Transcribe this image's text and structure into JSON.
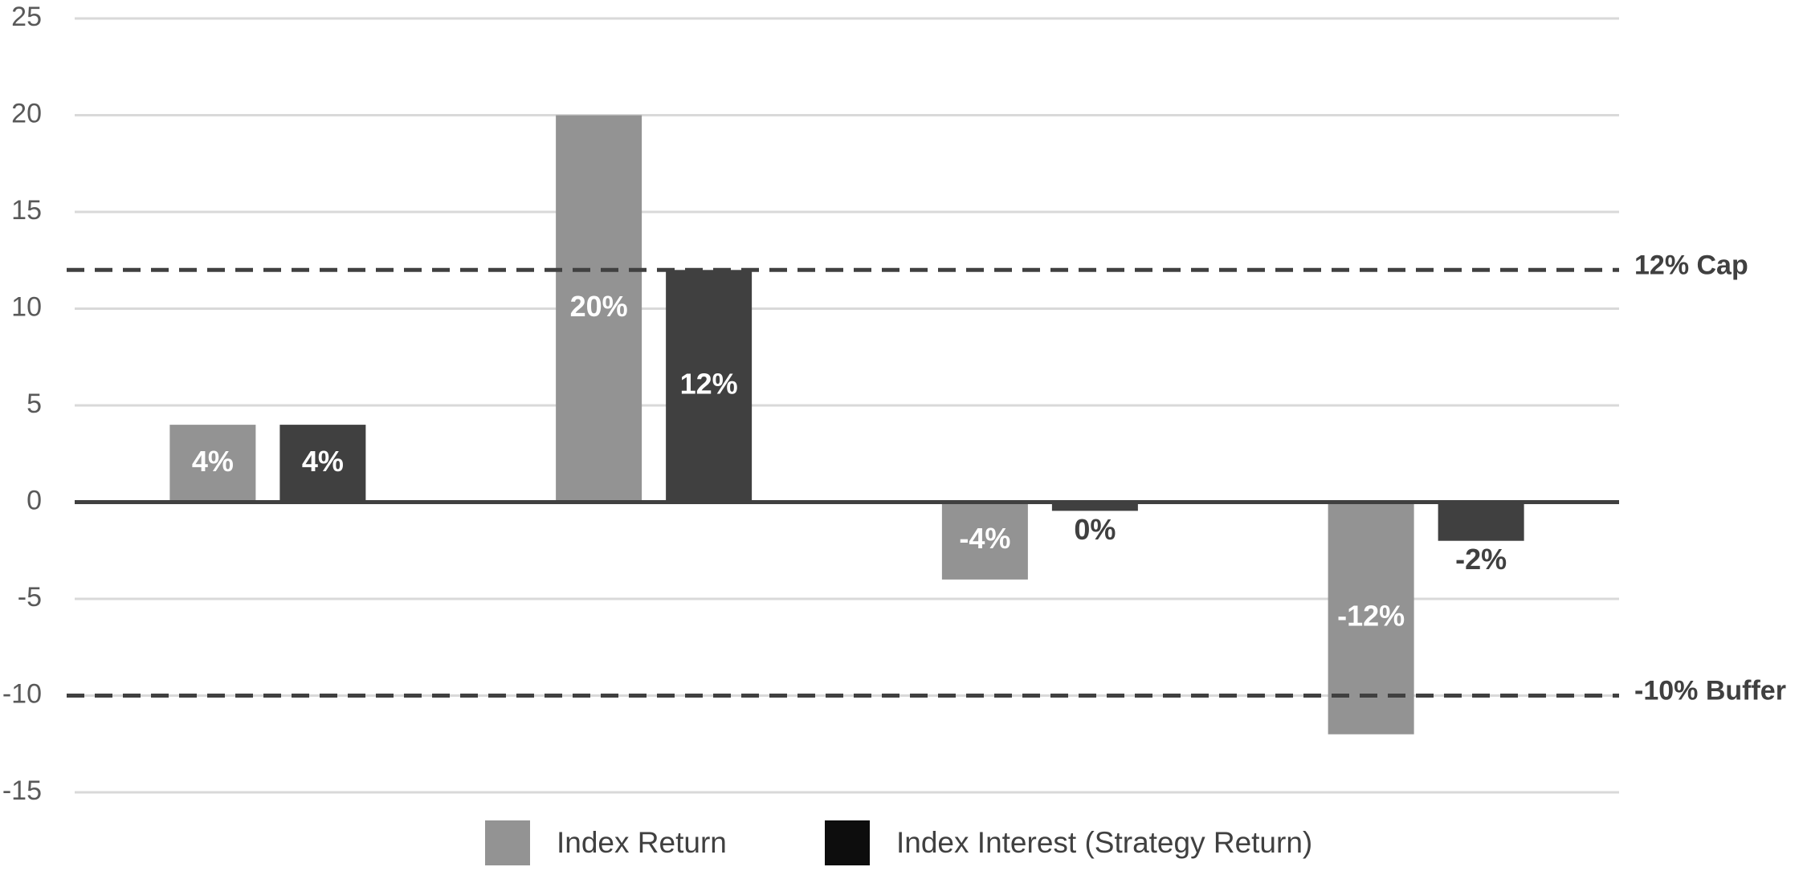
{
  "chart_data": {
    "type": "bar",
    "categories": [
      null,
      null,
      null,
      null
    ],
    "series": [
      {
        "name": "Index Return",
        "color": "#939393",
        "legend_color": "#939393",
        "values": [
          4,
          20,
          -4,
          -12
        ],
        "value_labels": [
          "4%",
          "20%",
          "-4%",
          "-12%"
        ]
      },
      {
        "name": "Index Interest (Strategy Return)",
        "color": "#404040",
        "legend_color": "#0d0d0d",
        "values": [
          4,
          12,
          -0.45,
          -2
        ],
        "value_labels": [
          "4%",
          "12%",
          "0%",
          "-2%"
        ]
      }
    ],
    "reference_lines": [
      {
        "value": 12,
        "label": "12% Cap"
      },
      {
        "value": -10,
        "label": "-10% Buffer"
      }
    ],
    "ylim": [
      -15,
      25
    ],
    "yticks": [
      -15,
      -10,
      -5,
      0,
      5,
      10,
      15,
      20,
      25
    ],
    "grid": true,
    "legend": "bottom"
  }
}
